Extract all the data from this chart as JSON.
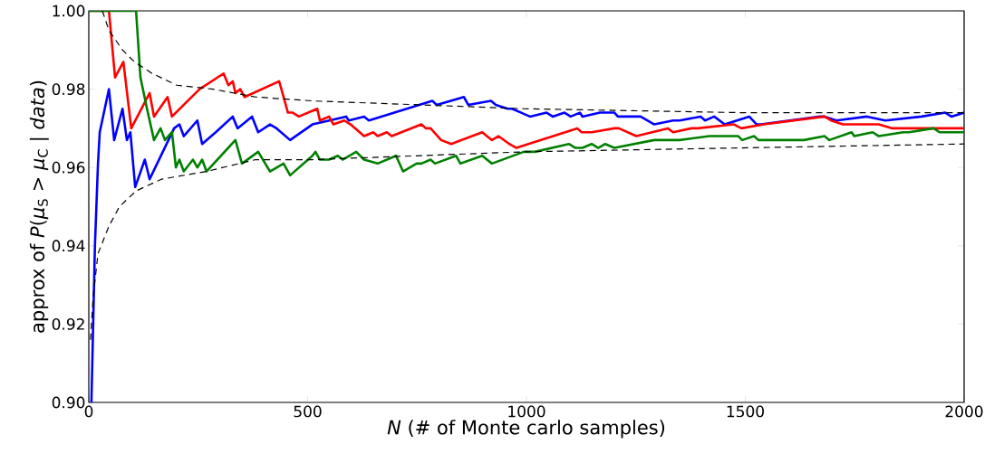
{
  "chart_data": {
    "type": "line",
    "xlabel": "*N*  (# of Monte carlo samples)",
    "ylabel": "approx of *P*(*μ*$_{S}$ > *μ*$_{C}$ | *data*)",
    "xlim": [
      0,
      2000
    ],
    "ylim": [
      0.9,
      1.0
    ],
    "xticks": [
      0,
      500,
      1000,
      1500,
      2000
    ],
    "yticks": [
      {
        "value": 0.9,
        "label": "0.90"
      },
      {
        "value": 0.92,
        "label": "0.92"
      },
      {
        "value": 0.94,
        "label": "0.94"
      },
      {
        "value": 0.96,
        "label": "0.96"
      },
      {
        "value": 0.98,
        "label": "0.98"
      },
      {
        "value": 1.0,
        "label": "1.00"
      }
    ],
    "marker": "none",
    "series": [
      {
        "color": "#0000ff",
        "line_style": "solid",
        "x": [
          6,
          14,
          21,
          25,
          46,
          58,
          77,
          87,
          95,
          106,
          128,
          139,
          195,
          207,
          217,
          248,
          259,
          290,
          329,
          340,
          373,
          387,
          414,
          429,
          460,
          511,
          588,
          594,
          629,
          640,
          785,
          795,
          857,
          867,
          919,
          930,
          957,
          967,
          988,
          1008,
          1046,
          1060,
          1087,
          1101,
          1122,
          1128,
          1168,
          1178,
          1201,
          1209,
          1230,
          1236,
          1261,
          1292,
          1335,
          1350,
          1398,
          1408,
          1429,
          1453,
          1509,
          1526,
          1536,
          1671,
          1681,
          1708,
          1778,
          1820,
          1903,
          1957,
          1971,
          2000
        ],
        "values": [
          0.9,
          0.94,
          0.961,
          0.969,
          0.98,
          0.967,
          0.975,
          0.967,
          0.969,
          0.955,
          0.962,
          0.957,
          0.97,
          0.971,
          0.968,
          0.972,
          0.966,
          0.969,
          0.973,
          0.97,
          0.973,
          0.969,
          0.971,
          0.97,
          0.967,
          0.971,
          0.973,
          0.972,
          0.973,
          0.972,
          0.977,
          0.976,
          0.978,
          0.976,
          0.977,
          0.976,
          0.975,
          0.975,
          0.974,
          0.973,
          0.974,
          0.973,
          0.974,
          0.973,
          0.974,
          0.973,
          0.974,
          0.974,
          0.974,
          0.973,
          0.973,
          0.973,
          0.973,
          0.971,
          0.972,
          0.972,
          0.973,
          0.972,
          0.973,
          0.971,
          0.973,
          0.971,
          0.971,
          0.973,
          0.973,
          0.972,
          0.973,
          0.972,
          0.973,
          0.974,
          0.973,
          0.974
        ]
      },
      {
        "color": "#ff0000",
        "line_style": "solid",
        "x": [
          0,
          46,
          60,
          79,
          97,
          139,
          149,
          180,
          190,
          253,
          308,
          319,
          329,
          335,
          346,
          356,
          435,
          455,
          466,
          480,
          522,
          528,
          549,
          559,
          584,
          598,
          629,
          650,
          660,
          681,
          692,
          760,
          770,
          781,
          805,
          828,
          899,
          921,
          936,
          961,
          977,
          1116,
          1126,
          1149,
          1201,
          1211,
          1251,
          1323,
          1335,
          1377,
          1391,
          1474,
          1491,
          1542,
          1681,
          1696,
          1723,
          1791,
          1805,
          1836,
          1888,
          1957,
          2000
        ],
        "values": [
          1.0,
          1.0,
          0.983,
          0.987,
          0.97,
          0.979,
          0.973,
          0.978,
          0.973,
          0.98,
          0.984,
          0.981,
          0.982,
          0.979,
          0.98,
          0.978,
          0.982,
          0.974,
          0.974,
          0.973,
          0.975,
          0.972,
          0.973,
          0.971,
          0.972,
          0.971,
          0.968,
          0.969,
          0.968,
          0.969,
          0.968,
          0.971,
          0.97,
          0.97,
          0.967,
          0.966,
          0.969,
          0.967,
          0.968,
          0.966,
          0.965,
          0.97,
          0.969,
          0.969,
          0.97,
          0.97,
          0.968,
          0.97,
          0.969,
          0.97,
          0.97,
          0.971,
          0.97,
          0.971,
          0.973,
          0.972,
          0.971,
          0.971,
          0.971,
          0.97,
          0.97,
          0.97,
          0.97
        ]
      },
      {
        "color": "#008000",
        "line_style": "solid",
        "x": [
          0,
          108,
          118,
          133,
          149,
          164,
          174,
          190,
          199,
          207,
          217,
          238,
          248,
          259,
          269,
          335,
          350,
          387,
          414,
          445,
          460,
          511,
          518,
          528,
          549,
          569,
          580,
          611,
          629,
          660,
          702,
          718,
          749,
          760,
          781,
          791,
          839,
          849,
          899,
          921,
          994,
          1019,
          1097,
          1112,
          1128,
          1149,
          1164,
          1180,
          1201,
          1292,
          1304,
          1329,
          1350,
          1418,
          1433,
          1453,
          1468,
          1484,
          1493,
          1520,
          1530,
          1571,
          1588,
          1605,
          1634,
          1681,
          1692,
          1743,
          1749,
          1791,
          1805,
          1861,
          1874,
          1930,
          1944,
          2000
        ],
        "values": [
          1.0,
          1.0,
          0.983,
          0.975,
          0.967,
          0.97,
          0.967,
          0.969,
          0.96,
          0.962,
          0.959,
          0.962,
          0.96,
          0.962,
          0.959,
          0.967,
          0.961,
          0.964,
          0.959,
          0.961,
          0.958,
          0.963,
          0.964,
          0.962,
          0.962,
          0.963,
          0.962,
          0.964,
          0.962,
          0.961,
          0.963,
          0.959,
          0.961,
          0.961,
          0.962,
          0.961,
          0.963,
          0.961,
          0.963,
          0.961,
          0.964,
          0.964,
          0.966,
          0.965,
          0.965,
          0.966,
          0.965,
          0.966,
          0.965,
          0.967,
          0.967,
          0.967,
          0.967,
          0.968,
          0.968,
          0.968,
          0.968,
          0.968,
          0.967,
          0.968,
          0.967,
          0.967,
          0.967,
          0.967,
          0.967,
          0.968,
          0.967,
          0.969,
          0.968,
          0.969,
          0.968,
          0.969,
          0.969,
          0.97,
          0.969,
          0.969
        ]
      },
      {
        "color": "#000000",
        "line_style": "dashed",
        "x": [
          31,
          46,
          77,
          104,
          145,
          201,
          284,
          381,
          511,
          756,
          994,
          1491,
          2000
        ],
        "values": [
          1.0,
          0.995,
          0.99,
          0.987,
          0.984,
          0.981,
          0.98,
          0.978,
          0.977,
          0.976,
          0.975,
          0.974,
          0.974
        ]
      },
      {
        "color": "#000000",
        "line_style": "dashed",
        "x": [
          4,
          10,
          21,
          46,
          70,
          108,
          166,
          269,
          381,
          511,
          994,
          1491,
          2000
        ],
        "values": [
          0.916,
          0.927,
          0.938,
          0.945,
          0.95,
          0.954,
          0.957,
          0.959,
          0.962,
          0.962,
          0.964,
          0.965,
          0.966
        ]
      }
    ]
  }
}
